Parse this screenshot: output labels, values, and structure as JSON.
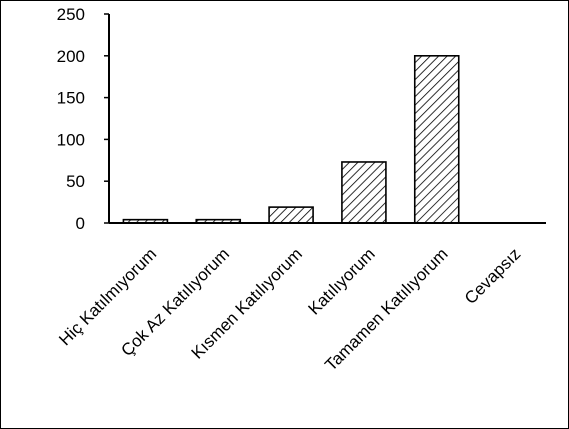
{
  "chart_data": {
    "type": "bar",
    "title": "",
    "xlabel": "",
    "ylabel": "",
    "categories": [
      "Hiç Katılmıyorum",
      "Çok Az Katılıyorum",
      "Kısmen Katılıyorum",
      "Katılıyorum",
      "Tamamen Katılıyorum",
      "Cevapsız"
    ],
    "values": [
      4,
      4,
      19,
      73,
      200,
      0
    ],
    "ylim": [
      0,
      250
    ],
    "yticks": [
      0,
      50,
      100,
      150,
      200,
      250
    ],
    "grid": false,
    "legend": "none",
    "bar_fill": "diagonal-hatch",
    "colors": {
      "bar_stroke": "#000000",
      "hatch": "#000000",
      "background": "#ffffff",
      "axis": "#000000"
    }
  }
}
